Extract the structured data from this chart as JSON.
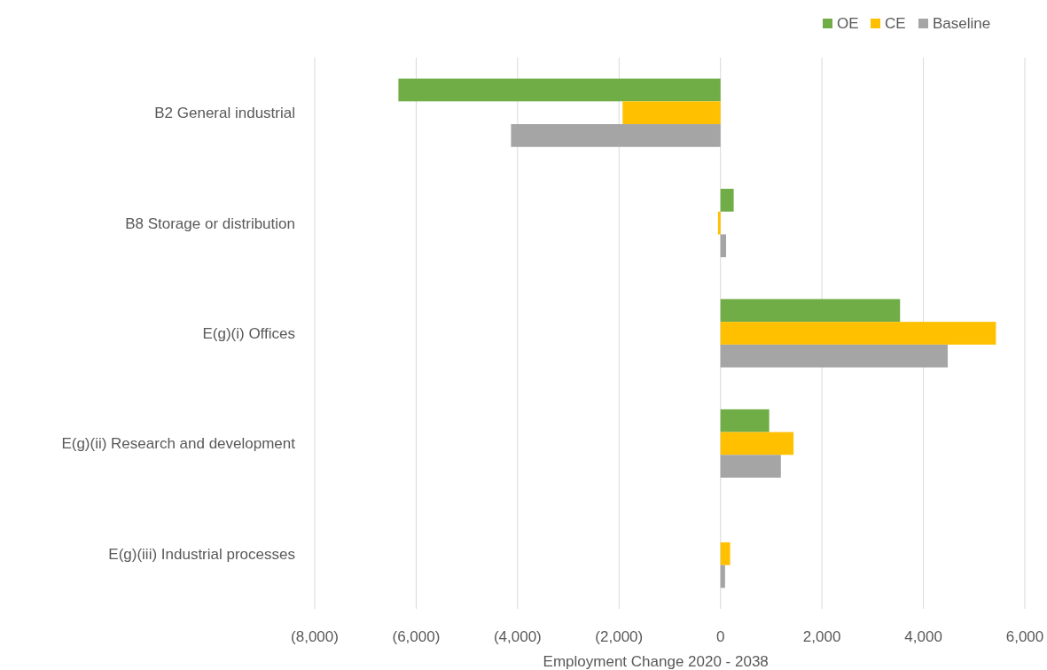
{
  "chart_data": {
    "type": "bar",
    "orientation": "horizontal",
    "xlabel": "Employment Change 2020 - 2038",
    "categories": [
      "B2 General industrial",
      "B8 Storage or distribution",
      "E(g)(i) Offices",
      "E(g)(ii) Research and development",
      "E(g)(iii) Industrial processes"
    ],
    "series": [
      {
        "name": "OE",
        "color": "#70ad47",
        "values": [
          -6350,
          260,
          3540,
          960,
          0
        ]
      },
      {
        "name": "CE",
        "color": "#ffc000",
        "values": [
          -1930,
          -50,
          5430,
          1440,
          190
        ]
      },
      {
        "name": "Baseline",
        "color": "#a5a5a5",
        "values": [
          -4130,
          110,
          4480,
          1190,
          90
        ]
      }
    ],
    "xlim": [
      -8000,
      6000
    ],
    "xticks": [
      {
        "value": -8000,
        "label": "(8,000)"
      },
      {
        "value": -6000,
        "label": "(6,000)"
      },
      {
        "value": -4000,
        "label": "(4,000)"
      },
      {
        "value": -2000,
        "label": "(2,000)"
      },
      0,
      {
        "value": 2000,
        "label": "2,000"
      },
      {
        "value": 4000,
        "label": "4,000"
      },
      {
        "value": 6000,
        "label": "6,000"
      }
    ],
    "grid": "x",
    "legend": "top right"
  }
}
